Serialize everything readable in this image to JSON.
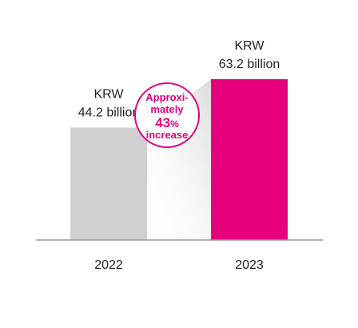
{
  "chart_data": {
    "type": "bar",
    "categories": [
      "2022",
      "2023"
    ],
    "values": [
      44.2,
      63.2
    ],
    "value_labels": [
      {
        "line1": "KRW",
        "line2": "44.2 billion"
      },
      {
        "line1": "KRW",
        "line2": "63.2 billion"
      }
    ],
    "colors": [
      "#d0d0d0",
      "#e6007e"
    ],
    "axis_color": "#999999",
    "ylim": [
      0,
      63.2
    ],
    "annotation": {
      "lines": [
        "Approxi-",
        "mately"
      ],
      "number": "43",
      "unit": "%",
      "tail": "increase",
      "color": "#e6007e"
    }
  }
}
